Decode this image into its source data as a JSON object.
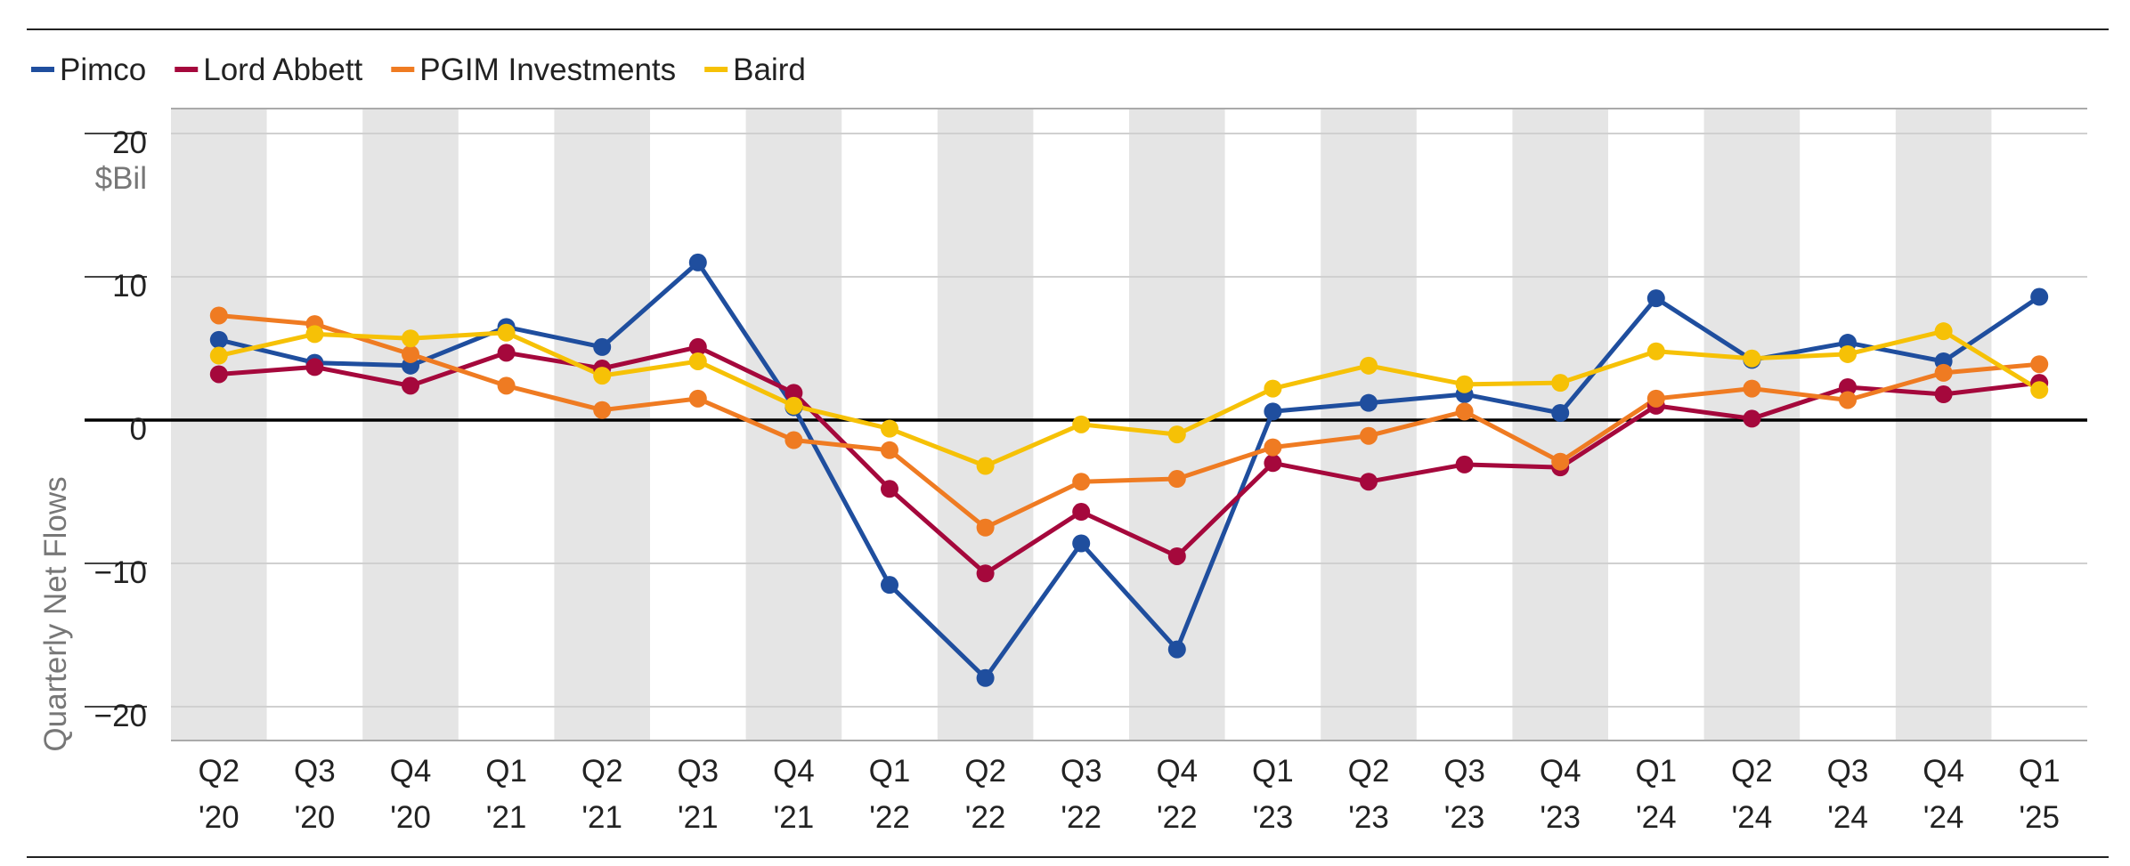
{
  "chart_data": {
    "type": "line",
    "categories": [
      [
        "Q2",
        "'20"
      ],
      [
        "Q3",
        "'20"
      ],
      [
        "Q4",
        "'20"
      ],
      [
        "Q1",
        "'21"
      ],
      [
        "Q2",
        "'21"
      ],
      [
        "Q3",
        "'21"
      ],
      [
        "Q4",
        "'21"
      ],
      [
        "Q1",
        "'22"
      ],
      [
        "Q2",
        "'22"
      ],
      [
        "Q3",
        "'22"
      ],
      [
        "Q4",
        "'22"
      ],
      [
        "Q1",
        "'23"
      ],
      [
        "Q2",
        "'23"
      ],
      [
        "Q3",
        "'23"
      ],
      [
        "Q4",
        "'23"
      ],
      [
        "Q1",
        "'24"
      ],
      [
        "Q2",
        "'24"
      ],
      [
        "Q3",
        "'24"
      ],
      [
        "Q4",
        "'24"
      ],
      [
        "Q1",
        "'25"
      ]
    ],
    "series": [
      {
        "name": "Pimco",
        "color": "#1f4e9e",
        "values": [
          5.6,
          4.0,
          3.8,
          6.5,
          5.1,
          11.0,
          0.9,
          -11.5,
          -18.0,
          -8.6,
          -16.0,
          0.6,
          1.2,
          1.8,
          0.5,
          8.5,
          4.2,
          5.4,
          4.1,
          8.6
        ]
      },
      {
        "name": "Lord Abbett",
        "color": "#a5083c",
        "values": [
          3.2,
          3.7,
          2.4,
          4.7,
          3.6,
          5.1,
          1.9,
          -4.8,
          -10.7,
          -6.4,
          -9.5,
          -3.0,
          -4.3,
          -3.1,
          -3.3,
          1.0,
          0.1,
          2.3,
          1.8,
          2.6
        ]
      },
      {
        "name": "PGIM Investments",
        "color": "#ef7b22",
        "values": [
          7.3,
          6.7,
          4.6,
          2.4,
          0.7,
          1.5,
          -1.4,
          -2.1,
          -7.5,
          -4.3,
          -4.1,
          -1.9,
          -1.1,
          0.6,
          -2.9,
          1.5,
          2.2,
          1.4,
          3.3,
          3.9
        ]
      },
      {
        "name": "Baird",
        "color": "#f6c106",
        "values": [
          4.5,
          6.0,
          5.7,
          6.1,
          3.1,
          4.1,
          1.0,
          -0.6,
          -3.2,
          -0.3,
          -1.0,
          2.2,
          3.8,
          2.5,
          2.6,
          4.8,
          4.3,
          4.6,
          6.2,
          2.1
        ]
      }
    ],
    "yticks": [
      {
        "value": 20,
        "label": "20",
        "sub": "$Bil"
      },
      {
        "value": 10,
        "label": "10"
      },
      {
        "value": 0,
        "label": "0"
      },
      {
        "value": -10,
        "label": "−10"
      },
      {
        "value": -20,
        "label": "−20"
      }
    ],
    "ylabel": "Quarterly Net Flows",
    "ylim": [
      -20.8,
      20
    ],
    "grid": true,
    "shaded_bands": "alternating",
    "legend_position": "top-left"
  }
}
